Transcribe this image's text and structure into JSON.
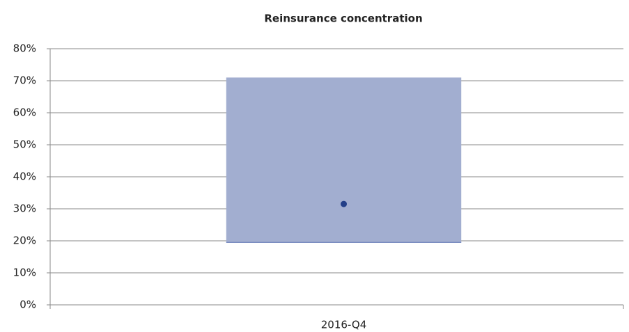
{
  "chart_data": {
    "type": "range",
    "title": "Reinsurance concentration",
    "categories": [
      "2016-Q4"
    ],
    "range": {
      "low": [
        19.5
      ],
      "high": [
        71
      ],
      "color": "#a2aed0"
    },
    "points": {
      "values": [
        31.5
      ],
      "color": "#233f88"
    },
    "ylim": [
      0,
      80
    ],
    "yticks": [
      {
        "value": 0,
        "label": "0%"
      },
      {
        "value": 10,
        "label": "10%"
      },
      {
        "value": 20,
        "label": "20%"
      },
      {
        "value": 30,
        "label": "30%"
      },
      {
        "value": 40,
        "label": "40%"
      },
      {
        "value": 50,
        "label": "50%"
      },
      {
        "value": 60,
        "label": "60%"
      },
      {
        "value": 70,
        "label": "70%"
      },
      {
        "value": 80,
        "label": "80%"
      }
    ],
    "grid": true
  }
}
